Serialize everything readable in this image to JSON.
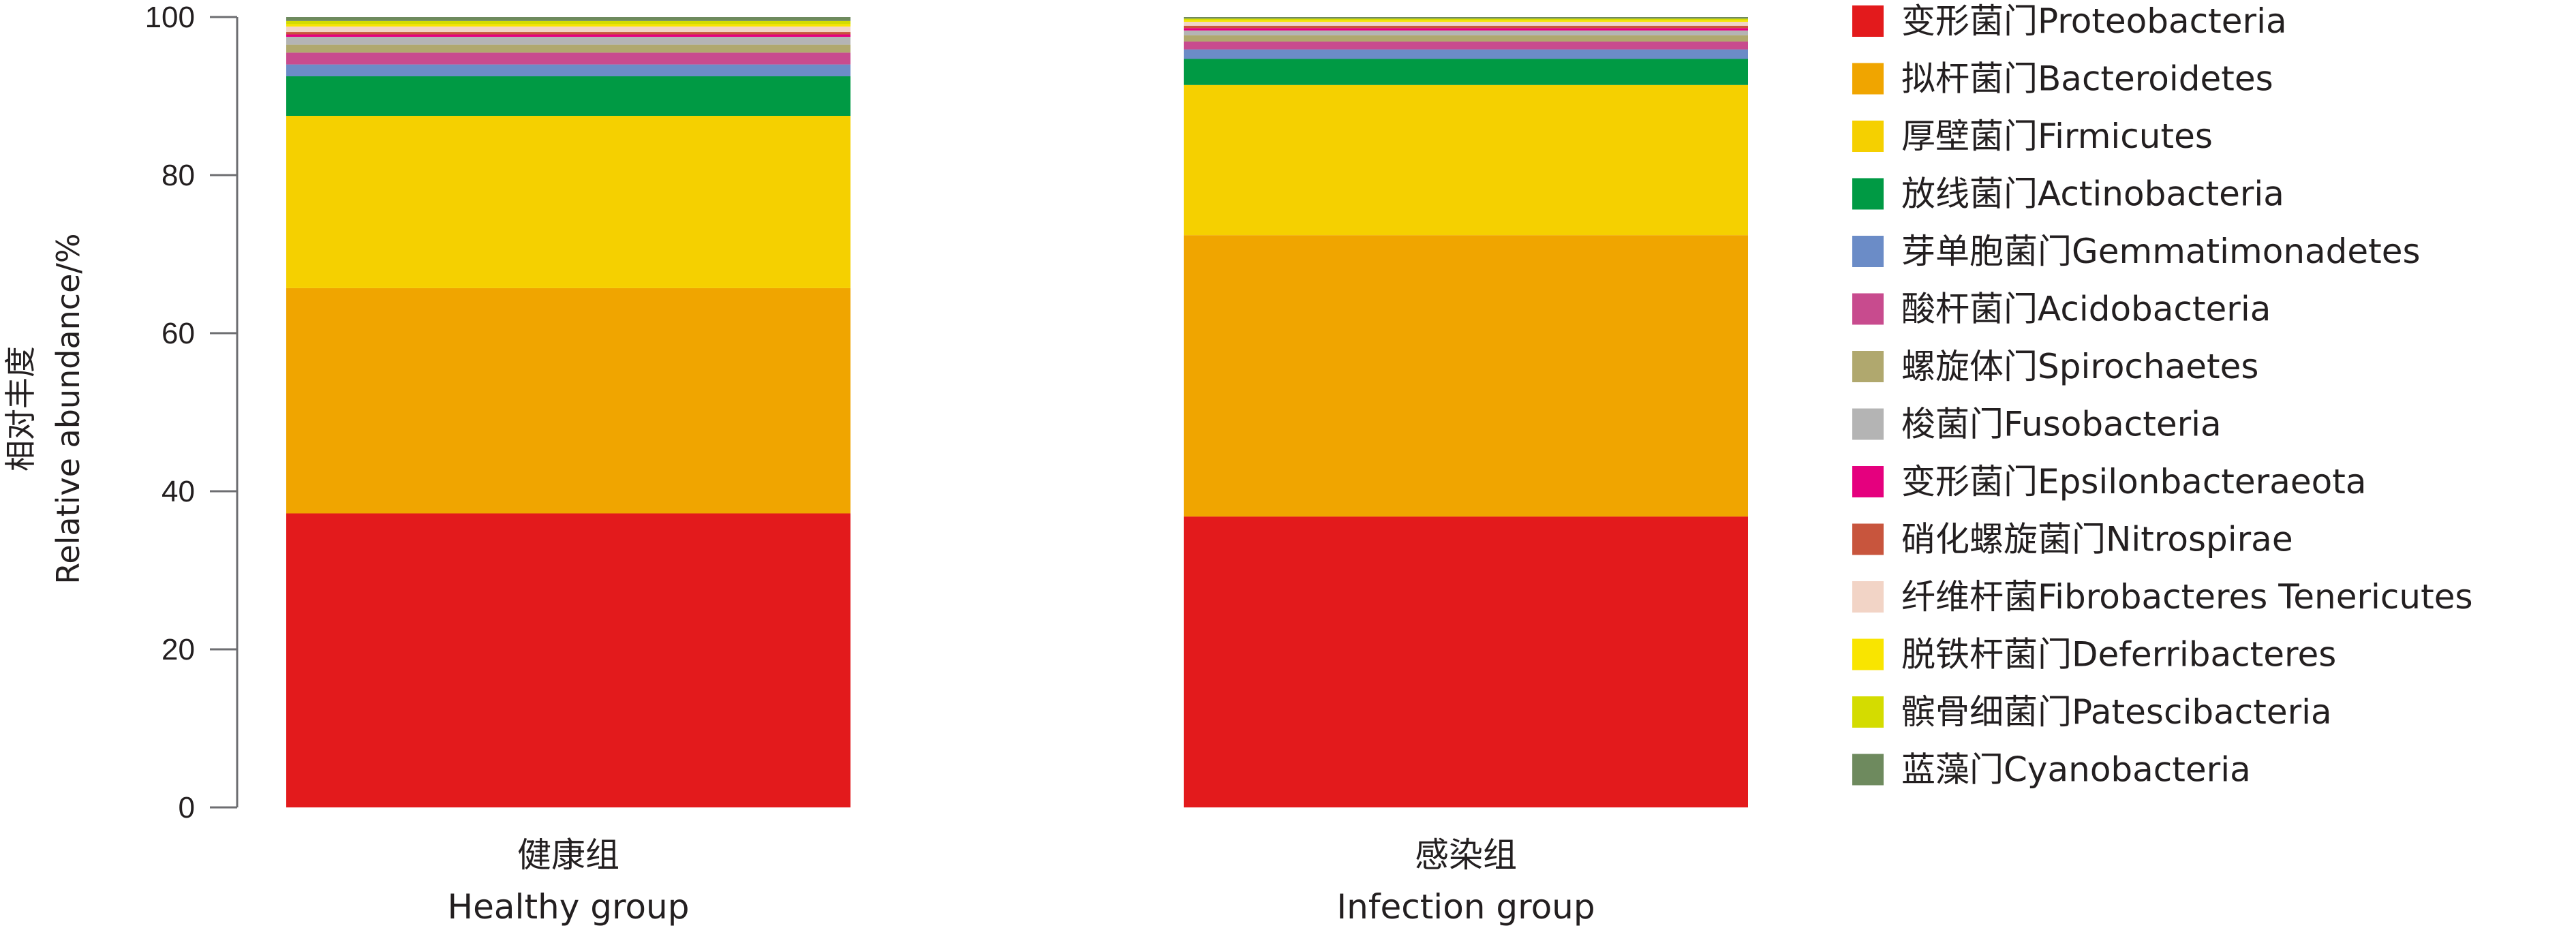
{
  "chart_data": {
    "type": "bar",
    "stacked": true,
    "ylabel_cn": "相对丰度",
    "ylabel_en": "Relative abundance/%",
    "ylim": [
      0,
      100
    ],
    "yticks": [
      "0",
      "20",
      "40",
      "60",
      "80",
      "100"
    ],
    "categories": [
      {
        "cn": "健康组",
        "en": "Healthy group"
      },
      {
        "cn": "感染组",
        "en": "Infection group"
      }
    ],
    "series": [
      {
        "name": "变形菌门Proteobacteria",
        "color": "#e31a1c",
        "values": [
          37.2,
          36.8
        ]
      },
      {
        "name": "拟杆菌门Bacteroidetes",
        "color": "#f0a500",
        "values": [
          28.5,
          35.6
        ]
      },
      {
        "name": "厚壁菌门Firmicutes",
        "color": "#f5d000",
        "values": [
          21.8,
          19.0
        ]
      },
      {
        "name": "放线菌门Actinobacteria",
        "color": "#009a44",
        "values": [
          5.0,
          3.3
        ]
      },
      {
        "name": "芽单胞菌门Gemmatimonadetes",
        "color": "#6b8cc7",
        "values": [
          1.5,
          1.2
        ]
      },
      {
        "name": "酸杆菌门Acidobacteria",
        "color": "#c84b8e",
        "values": [
          1.5,
          1.0
        ]
      },
      {
        "name": "螺旋体门Spirochaetes",
        "color": "#b0a86e",
        "values": [
          1.0,
          0.8
        ]
      },
      {
        "name": "梭菌门Fusobacteria",
        "color": "#b4b4b4",
        "values": [
          1.0,
          0.6
        ]
      },
      {
        "name": "变形菌门Epsilonbacteraeota",
        "color": "#e5007e",
        "values": [
          0.3,
          0.3
        ]
      },
      {
        "name": "硝化螺旋菌门Nitrospirae",
        "color": "#c8553d",
        "values": [
          0.3,
          0.3
        ]
      },
      {
        "name": "纤维杆菌Fibrobacteres Tenericutes",
        "color": "#f2d4c6",
        "values": [
          0.7,
          0.5
        ]
      },
      {
        "name": "脱铁杆菌门Deferribacteres",
        "color": "#f9e500",
        "values": [
          0.3,
          0.2
        ]
      },
      {
        "name": "髌骨细菌门Patescibacteria",
        "color": "#d4dc00",
        "values": [
          0.4,
          0.2
        ]
      },
      {
        "name": "蓝藻门Cyanobacteria",
        "color": "#6e8a5e",
        "values": [
          0.5,
          0.2
        ]
      }
    ]
  }
}
